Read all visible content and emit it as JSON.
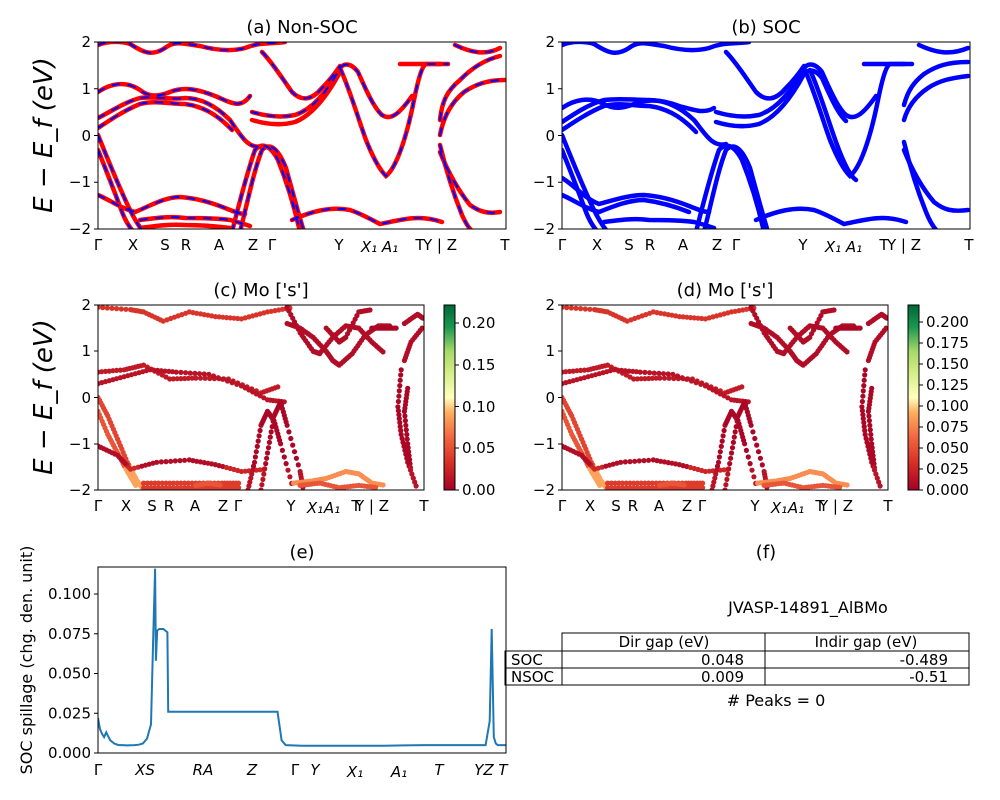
{
  "figure": {
    "band_ylabel": "E − E_f (eV)",
    "band_xticks": [
      "Γ",
      "X",
      "S",
      "R",
      "A",
      "Z",
      "Γ",
      "Y",
      "X₁",
      "A₁",
      "T",
      "Y | Z",
      "T"
    ],
    "band_yticks": [
      "2",
      "1",
      "0",
      "−1",
      "−2"
    ],
    "colorbar_c_ticks": [
      "0.20",
      "0.15",
      "0.10",
      "0.05",
      "0.00"
    ],
    "colorbar_d_ticks": [
      "0.200",
      "0.175",
      "0.150",
      "0.125",
      "0.100",
      "0.075",
      "0.050",
      "0.025",
      "0.000"
    ]
  },
  "chart_data": [
    {
      "id": "a",
      "type": "line",
      "title": "(a) Non-SOC",
      "ylabel": "E − E_f (eV)",
      "ylim": [
        -2,
        2
      ],
      "series_colors": [
        "#ff0000",
        "#0000ff"
      ],
      "xticks": [
        "Γ",
        "X",
        "S",
        "R",
        "A",
        "Z",
        "Γ",
        "Y",
        "X₁",
        "A₁",
        "T",
        "Y | Z",
        "T"
      ]
    },
    {
      "id": "b",
      "type": "line",
      "title": "(b) SOC",
      "ylim": [
        -2,
        2
      ],
      "series_colors": [
        "#0000ff"
      ],
      "xticks": [
        "Γ",
        "X",
        "S",
        "R",
        "A",
        "Z",
        "Γ",
        "Y",
        "X₁",
        "A₁",
        "T",
        "Y | Z",
        "T"
      ]
    },
    {
      "id": "c",
      "type": "scatter",
      "title": "(c)  Mo ['s']",
      "ylabel": "E − E_f (eV)",
      "ylim": [
        -2,
        2
      ],
      "colorbar_range": [
        0,
        0.22
      ],
      "colormap": "RdYlGn",
      "xticks": [
        "Γ",
        "X",
        "S",
        "R",
        "A",
        "Z",
        "Γ",
        "Y",
        "X₁",
        "A₁",
        "T",
        "Y | Z",
        "T"
      ]
    },
    {
      "id": "d",
      "type": "scatter",
      "title": "(d) Mo ['s']",
      "ylim": [
        -2,
        2
      ],
      "colorbar_range": [
        0,
        0.21
      ],
      "colormap": "RdYlGn",
      "xticks": [
        "Γ",
        "X",
        "S",
        "R",
        "A",
        "Z",
        "Γ",
        "Y",
        "X₁",
        "A₁",
        "T",
        "Y | Z",
        "T"
      ]
    },
    {
      "id": "e",
      "type": "line",
      "title": "(e)",
      "ylabel": "SOC spillage (chg. den. unit)",
      "ylim": [
        0,
        0.117
      ],
      "yticks": [
        "0.000",
        "0.025",
        "0.050",
        "0.075",
        "0.100"
      ],
      "xticks": [
        "Γ",
        "XS",
        "RA",
        "Z",
        "Γ",
        "Y",
        "X₁",
        "A₁",
        "T",
        "YZ",
        "T"
      ],
      "line_color": "#1f77b4",
      "x": [
        0,
        0.5,
        1,
        1.5,
        2,
        3,
        4,
        5,
        6,
        7,
        8,
        9,
        10,
        11,
        12,
        13,
        13.5,
        14,
        14.2,
        14.5,
        15,
        16,
        17,
        17.2,
        18,
        20,
        24,
        30,
        36,
        40,
        44,
        45,
        46,
        50,
        55,
        60,
        65,
        70,
        75,
        80,
        85,
        90,
        95,
        96,
        96.5,
        97,
        97.5,
        98,
        100
      ],
      "values": [
        0.022,
        0.015,
        0.012,
        0.01,
        0.013,
        0.008,
        0.006,
        0.005,
        0.005,
        0.0048,
        0.0049,
        0.005,
        0.0052,
        0.006,
        0.009,
        0.018,
        0.07,
        0.116,
        0.058,
        0.077,
        0.078,
        0.078,
        0.076,
        0.026,
        0.026,
        0.026,
        0.026,
        0.026,
        0.026,
        0.026,
        0.026,
        0.008,
        0.005,
        0.0045,
        0.0045,
        0.0045,
        0.0045,
        0.0045,
        0.0048,
        0.005,
        0.005,
        0.005,
        0.005,
        0.02,
        0.078,
        0.01,
        0.006,
        0.005,
        0.005
      ]
    },
    {
      "id": "f",
      "type": "table",
      "title": "(f)",
      "caption": "JVASP-14891_AlBMo",
      "columns": [
        "Dir gap (eV)",
        "Indir gap (eV)"
      ],
      "rows": [
        {
          "label": "SOC",
          "dir": "0.048",
          "indir": "-0.489"
        },
        {
          "label": "NSOC",
          "dir": "0.009",
          "indir": "-0.51"
        }
      ],
      "footer": "# Peaks = 0"
    }
  ]
}
